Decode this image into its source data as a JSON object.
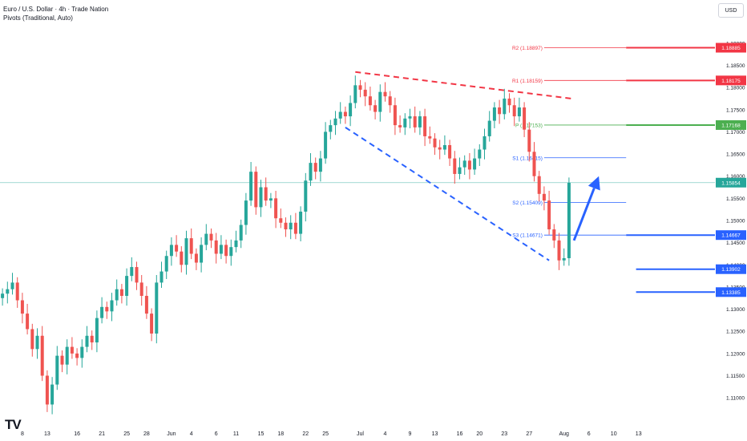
{
  "header": {
    "title": "Euro / U.S. Dollar · 4h · Trade Nation",
    "subtitle": "Pivots (Traditional, Auto)"
  },
  "currency_button": "USD",
  "logo_text": "TV",
  "colors": {
    "up": "#26a69a",
    "down": "#ef5350",
    "pivot_p": "#4caf50",
    "pivot_r": "#f23645",
    "pivot_s": "#2962ff",
    "price_line": "#26a69a",
    "trend_red": "#f23645",
    "trend_blue": "#2962ff",
    "arrow": "#2962ff"
  },
  "chart_data": {
    "type": "candlestick",
    "symbol": "EURUSD",
    "timeframe": "4h",
    "ylim": [
      1.1075,
      1.1925
    ],
    "y_ticks": [
      "1.19000",
      "1.18500",
      "1.18000",
      "1.17500",
      "1.17000",
      "1.16500",
      "1.16000",
      "1.15500",
      "1.15000",
      "1.14500",
      "1.14000",
      "1.13500",
      "1.13000",
      "1.12500",
      "1.12000",
      "1.11500",
      "1.11000"
    ],
    "x_ticks": [
      {
        "label": "8",
        "idx": 4
      },
      {
        "label": "13",
        "idx": 9
      },
      {
        "label": "16",
        "idx": 15
      },
      {
        "label": "21",
        "idx": 20
      },
      {
        "label": "25",
        "idx": 25
      },
      {
        "label": "28",
        "idx": 29
      },
      {
        "label": "Jun",
        "idx": 34
      },
      {
        "label": "4",
        "idx": 38
      },
      {
        "label": "6",
        "idx": 43
      },
      {
        "label": "11",
        "idx": 47
      },
      {
        "label": "15",
        "idx": 52
      },
      {
        "label": "18",
        "idx": 56
      },
      {
        "label": "22",
        "idx": 61
      },
      {
        "label": "25",
        "idx": 65
      },
      {
        "label": "Jul",
        "idx": 72
      },
      {
        "label": "4",
        "idx": 77
      },
      {
        "label": "9",
        "idx": 82
      },
      {
        "label": "13",
        "idx": 87
      },
      {
        "label": "16",
        "idx": 92
      },
      {
        "label": "20",
        "idx": 96
      },
      {
        "label": "23",
        "idx": 101
      },
      {
        "label": "27",
        "idx": 106
      },
      {
        "label": "Aug",
        "idx": 113
      },
      {
        "label": "6",
        "idx": 118
      },
      {
        "label": "10",
        "idx": 123
      },
      {
        "label": "13",
        "idx": 128
      }
    ],
    "candle_count": 115,
    "closes": [
      1.1335,
      1.1345,
      1.136,
      1.132,
      1.129,
      1.1255,
      1.121,
      1.124,
      1.115,
      1.1085,
      1.113,
      1.1195,
      1.1175,
      1.1215,
      1.12,
      1.119,
      1.1215,
      1.124,
      1.1225,
      1.128,
      1.1305,
      1.1295,
      1.132,
      1.1345,
      1.133,
      1.1375,
      1.1395,
      1.136,
      1.133,
      1.129,
      1.1245,
      1.136,
      1.1385,
      1.142,
      1.1445,
      1.143,
      1.14,
      1.146,
      1.1425,
      1.1405,
      1.1445,
      1.147,
      1.1455,
      1.1425,
      1.1445,
      1.142,
      1.144,
      1.1455,
      1.149,
      1.1545,
      1.161,
      1.153,
      1.1575,
      1.1545,
      1.155,
      1.1505,
      1.1495,
      1.148,
      1.1495,
      1.147,
      1.152,
      1.159,
      1.163,
      1.161,
      1.164,
      1.17,
      1.1715,
      1.173,
      1.1745,
      1.1735,
      1.1765,
      1.1805,
      1.1795,
      1.178,
      1.176,
      1.1745,
      1.179,
      1.178,
      1.176,
      1.1715,
      1.171,
      1.173,
      1.1735,
      1.171,
      1.1735,
      1.169,
      1.1685,
      1.1665,
      1.166,
      1.167,
      1.164,
      1.1605,
      1.162,
      1.1635,
      1.1615,
      1.164,
      1.166,
      1.169,
      1.1725,
      1.1755,
      1.174,
      1.1775,
      1.176,
      1.1735,
      1.1755,
      1.1705,
      1.1655,
      1.16,
      1.156,
      1.1545,
      1.148,
      1.1455,
      1.141,
      1.1415,
      1.1585
    ],
    "close_lines": [
      {
        "label": "1.15854",
        "value": 1.15854,
        "color": "#26a69a"
      }
    ],
    "pivots": [
      {
        "name": "R2",
        "text": "R2 (1.18897)",
        "value": 1.18897,
        "tag": "1.18885",
        "color": "#f23645"
      },
      {
        "name": "R1",
        "text": "R1 (1.18159)",
        "value": 1.18159,
        "tag": "1.18175",
        "color": "#f23645"
      },
      {
        "name": "P",
        "text": "P (1.17153)",
        "value": 1.17153,
        "tag": "1.17168",
        "color": "#4caf50"
      },
      {
        "name": "S1",
        "text": "S1 (1.16415)",
        "value": 1.16415,
        "tag": "",
        "color": "#2962ff"
      },
      {
        "name": "S2",
        "text": "S2 (1.15409)",
        "value": 1.15409,
        "tag": "",
        "color": "#2962ff"
      },
      {
        "name": "S3",
        "text": "S3 (1.14671)",
        "value": 1.14671,
        "tag": "1.14667",
        "color": "#2962ff"
      }
    ],
    "support_levels": [
      {
        "tag": "1.13902",
        "value": 1.13902,
        "color": "#2962ff"
      },
      {
        "tag": "1.13385",
        "value": 1.13385,
        "color": "#2962ff"
      }
    ],
    "trendlines": [
      {
        "name": "upper-resistance",
        "color": "#f23645",
        "from": {
          "idx": 71,
          "value": 1.1835
        },
        "to": {
          "idx": 114.5,
          "value": 1.1775
        }
      },
      {
        "name": "lower-support",
        "color": "#2962ff",
        "from": {
          "idx": 69,
          "value": 1.171
        },
        "to": {
          "idx": 110,
          "value": 1.141
        }
      }
    ],
    "arrow": {
      "from": {
        "idx": 115,
        "value": 1.1455
      },
      "to": {
        "idx": 120,
        "value": 1.16
      },
      "color": "#2962ff"
    }
  }
}
